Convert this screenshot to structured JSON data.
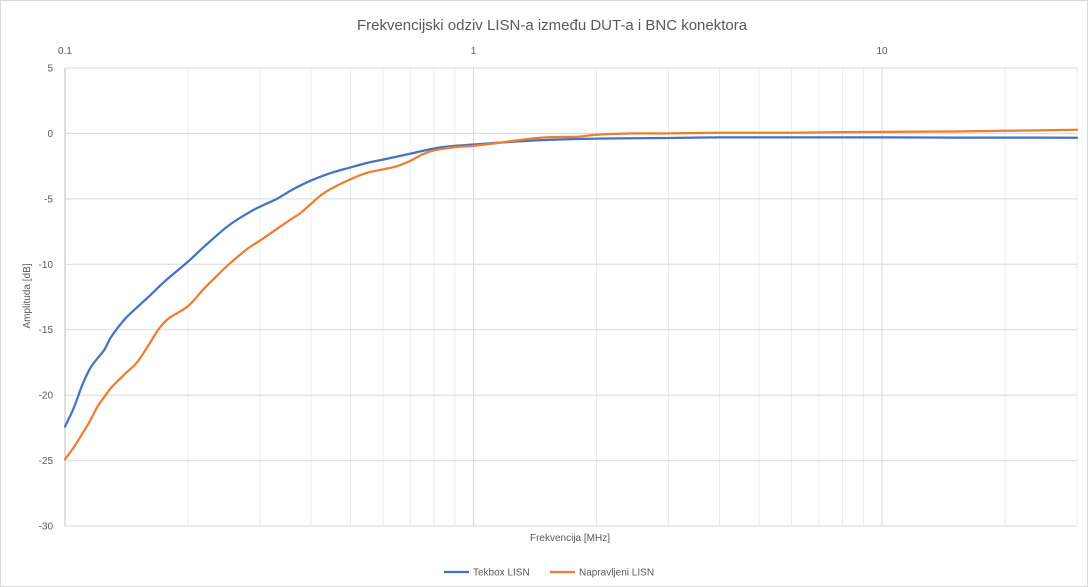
{
  "chart_data": {
    "type": "line",
    "title": "Frekvencijski odziv LISN-a između DUT-a i BNC konektora",
    "xlabel": "Frekvencija [MHz]",
    "ylabel": "Amplituda [dB]",
    "x_scale": "log",
    "xlim": [
      0.1,
      30
    ],
    "ylim": [
      -30,
      5
    ],
    "x_ticks": [
      0.1,
      1,
      10
    ],
    "x_tick_labels": [
      "0.1",
      "1",
      "10"
    ],
    "y_ticks": [
      5,
      0,
      -5,
      -10,
      -15,
      -20,
      -25,
      -30
    ],
    "y_tick_labels": [
      "5",
      "0",
      "-5",
      "-10",
      "-15",
      "-20",
      "-25",
      "-30"
    ],
    "x_axis_position": "top",
    "grid": true,
    "legend_position": "bottom",
    "series": [
      {
        "name": "Tekbox LISN",
        "color": "#4472c4",
        "points": [
          [
            0.1,
            -22.4
          ],
          [
            0.105,
            -21.0
          ],
          [
            0.11,
            -19.3
          ],
          [
            0.115,
            -18.0
          ],
          [
            0.12,
            -17.2
          ],
          [
            0.125,
            -16.5
          ],
          [
            0.13,
            -15.5
          ],
          [
            0.14,
            -14.2
          ],
          [
            0.15,
            -13.3
          ],
          [
            0.16,
            -12.5
          ],
          [
            0.17,
            -11.7
          ],
          [
            0.18,
            -11.0
          ],
          [
            0.2,
            -9.8
          ],
          [
            0.22,
            -8.6
          ],
          [
            0.25,
            -7.1
          ],
          [
            0.28,
            -6.1
          ],
          [
            0.3,
            -5.6
          ],
          [
            0.33,
            -5.0
          ],
          [
            0.36,
            -4.3
          ],
          [
            0.4,
            -3.6
          ],
          [
            0.45,
            -3.0
          ],
          [
            0.5,
            -2.6
          ],
          [
            0.55,
            -2.25
          ],
          [
            0.6,
            -2.0
          ],
          [
            0.7,
            -1.55
          ],
          [
            0.8,
            -1.15
          ],
          [
            0.9,
            -0.95
          ],
          [
            1.0,
            -0.85
          ],
          [
            1.1,
            -0.75
          ],
          [
            1.3,
            -0.6
          ],
          [
            1.5,
            -0.5
          ],
          [
            2.0,
            -0.4
          ],
          [
            3.0,
            -0.35
          ],
          [
            4.0,
            -0.3
          ],
          [
            6.0,
            -0.3
          ],
          [
            10.0,
            -0.3
          ],
          [
            15.0,
            -0.32
          ],
          [
            20.0,
            -0.32
          ],
          [
            30.0,
            -0.33
          ]
        ]
      },
      {
        "name": "Napravljeni LISN",
        "color": "#ed7d31",
        "points": [
          [
            0.1,
            -24.9
          ],
          [
            0.105,
            -24.0
          ],
          [
            0.11,
            -23.0
          ],
          [
            0.115,
            -22.0
          ],
          [
            0.12,
            -20.9
          ],
          [
            0.125,
            -20.1
          ],
          [
            0.13,
            -19.4
          ],
          [
            0.14,
            -18.4
          ],
          [
            0.15,
            -17.5
          ],
          [
            0.16,
            -16.2
          ],
          [
            0.17,
            -14.9
          ],
          [
            0.18,
            -14.1
          ],
          [
            0.2,
            -13.2
          ],
          [
            0.22,
            -11.8
          ],
          [
            0.25,
            -10.1
          ],
          [
            0.28,
            -8.8
          ],
          [
            0.3,
            -8.2
          ],
          [
            0.33,
            -7.3
          ],
          [
            0.36,
            -6.5
          ],
          [
            0.38,
            -6.0
          ],
          [
            0.42,
            -4.8
          ],
          [
            0.45,
            -4.2
          ],
          [
            0.5,
            -3.5
          ],
          [
            0.55,
            -3.0
          ],
          [
            0.6,
            -2.75
          ],
          [
            0.65,
            -2.5
          ],
          [
            0.7,
            -2.1
          ],
          [
            0.75,
            -1.6
          ],
          [
            0.8,
            -1.3
          ],
          [
            0.9,
            -1.05
          ],
          [
            1.0,
            -0.95
          ],
          [
            1.1,
            -0.8
          ],
          [
            1.3,
            -0.5
          ],
          [
            1.5,
            -0.3
          ],
          [
            1.8,
            -0.25
          ],
          [
            2.0,
            -0.1
          ],
          [
            2.5,
            0.0
          ],
          [
            3.0,
            0.0
          ],
          [
            4.0,
            0.05
          ],
          [
            6.0,
            0.05
          ],
          [
            8.0,
            0.1
          ],
          [
            10.0,
            0.12
          ],
          [
            15.0,
            0.15
          ],
          [
            20.0,
            0.2
          ],
          [
            30.0,
            0.28
          ]
        ]
      }
    ]
  }
}
